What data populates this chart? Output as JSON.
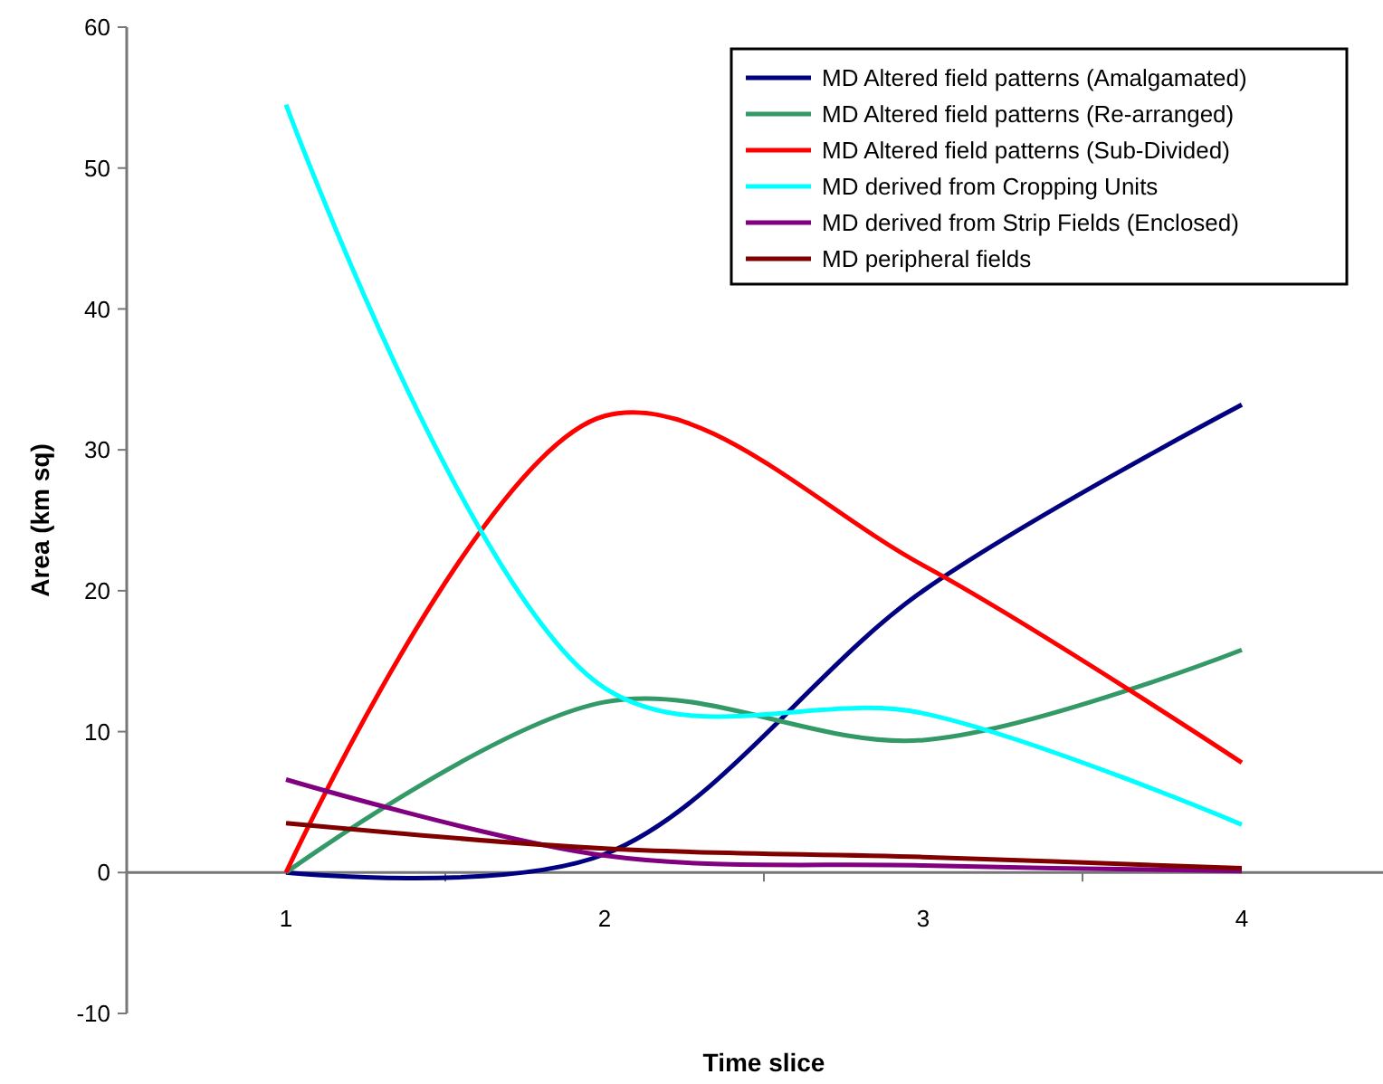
{
  "chart_data": {
    "type": "line",
    "xlabel": "Time slice",
    "ylabel": "Area (km sq)",
    "categories": [
      "1",
      "2",
      "3",
      "4"
    ],
    "ylim": [
      -10,
      60
    ],
    "yticks": [
      -10,
      0,
      10,
      20,
      30,
      40,
      50,
      60
    ],
    "grid": false,
    "legend": "top right",
    "marker": "none",
    "line_style": "solid",
    "series": [
      {
        "name": "MD Altered field patterns (Amalgamated)",
        "color": "#000080",
        "values": [
          0,
          1.3,
          20,
          33.2
        ]
      },
      {
        "name": "MD Altered field patterns (Re-arranged)",
        "color": "#339966",
        "values": [
          0,
          12.1,
          9.4,
          15.8
        ]
      },
      {
        "name": "MD Altered field patterns (Sub-Divided)",
        "color": "#ff0000",
        "values": [
          0,
          32.4,
          21.8,
          7.8
        ]
      },
      {
        "name": "MD derived from Cropping Units",
        "color": "#00ffff",
        "values": [
          54.5,
          13.1,
          11.3,
          3.4
        ]
      },
      {
        "name": "MD derived from Strip Fields (Enclosed)",
        "color": "#800080",
        "values": [
          6.6,
          1.2,
          0.5,
          0.1
        ]
      },
      {
        "name": "MD peripheral fields",
        "color": "#800000",
        "values": [
          3.5,
          1.7,
          1.1,
          0.3
        ]
      }
    ]
  }
}
